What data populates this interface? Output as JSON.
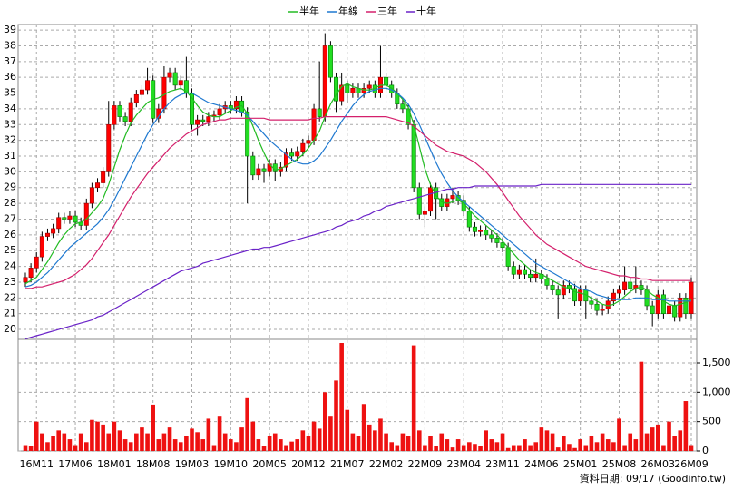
{
  "chart_data": {
    "type": "candlestick",
    "categories": [
      null,
      null,
      "16M11",
      null,
      null,
      null,
      null,
      null,
      null,
      "17M06",
      null,
      null,
      null,
      null,
      null,
      null,
      "18M01",
      null,
      null,
      null,
      null,
      null,
      null,
      "18M08",
      null,
      null,
      null,
      null,
      null,
      null,
      "19M03",
      null,
      null,
      null,
      null,
      null,
      null,
      "19M10",
      null,
      null,
      null,
      null,
      null,
      null,
      "20M05",
      null,
      null,
      null,
      null,
      null,
      null,
      "20M12",
      null,
      null,
      null,
      null,
      null,
      null,
      "21M07",
      null,
      null,
      null,
      null,
      null,
      null,
      "22M02",
      null,
      null,
      null,
      null,
      null,
      null,
      "22M09",
      null,
      null,
      null,
      null,
      null,
      null,
      "23M04",
      null,
      null,
      null,
      null,
      null,
      null,
      "23M11",
      null,
      null,
      null,
      null,
      null,
      null,
      "24M06",
      null,
      null,
      null,
      null,
      null,
      null,
      "25M01",
      null,
      null,
      null,
      null,
      null,
      null,
      "25M08",
      null,
      null,
      null,
      null,
      null,
      null,
      "26M03",
      null,
      null,
      null,
      null,
      null,
      "26M09"
    ],
    "open": [
      23.0,
      23.3,
      23.9,
      24.6,
      25.9,
      26.1,
      26.4,
      27.1,
      27.0,
      27.2,
      26.8,
      26.6,
      28.0,
      29.0,
      29.3,
      30.0,
      33.0,
      34.2,
      33.5,
      33.2,
      34.4,
      34.9,
      35.2,
      35.8,
      33.4,
      34.0,
      36.0,
      36.3,
      35.5,
      35.8,
      35.0,
      33.0,
      33.3,
      33.2,
      33.5,
      33.6,
      34.0,
      34.2,
      34.0,
      34.5,
      33.8,
      31.0,
      29.8,
      30.2,
      30.0,
      30.5,
      30.0,
      30.3,
      31.2,
      31.0,
      31.3,
      31.8,
      32.0,
      34.0,
      33.5,
      38.0,
      36.0,
      34.5,
      35.5,
      35.0,
      35.3,
      35.0,
      35.3,
      35.5,
      35.0,
      36.0,
      35.5,
      35.0,
      34.3,
      34.0,
      33.0,
      29.0,
      27.3,
      27.5,
      29.0,
      28.3,
      27.8,
      28.3,
      28.5,
      28.2,
      27.5,
      26.5,
      26.2,
      26.3,
      26.0,
      25.8,
      25.5,
      25.2,
      24.0,
      23.5,
      23.8,
      23.5,
      23.3,
      23.5,
      23.2,
      22.8,
      22.5,
      22.2,
      22.8,
      22.6,
      21.8,
      22.5,
      21.8,
      21.6,
      21.2,
      21.3,
      21.8,
      22.3,
      22.5,
      23.0,
      22.6,
      22.8,
      22.5,
      21.5,
      21.0,
      22.2,
      21.0,
      21.5,
      20.8,
      22.0,
      21.0
    ],
    "high": [
      23.6,
      24.2,
      24.9,
      26.2,
      26.4,
      26.7,
      27.4,
      27.4,
      27.5,
      27.5,
      27.1,
      28.3,
      29.3,
      29.6,
      30.3,
      34.5,
      34.5,
      34.5,
      33.8,
      34.7,
      35.2,
      35.5,
      36.6,
      36.1,
      34.3,
      36.7,
      36.6,
      36.6,
      36.1,
      37.3,
      35.3,
      33.6,
      33.6,
      33.8,
      33.9,
      34.3,
      34.5,
      34.5,
      34.8,
      34.8,
      34.1,
      31.3,
      30.5,
      30.5,
      30.8,
      30.8,
      30.6,
      31.5,
      31.5,
      31.6,
      32.1,
      32.3,
      34.3,
      37.0,
      38.8,
      38.3,
      36.3,
      36.3,
      35.8,
      35.6,
      35.6,
      35.6,
      35.8,
      35.8,
      38.0,
      36.3,
      35.8,
      35.3,
      34.6,
      34.3,
      33.3,
      29.3,
      27.8,
      29.3,
      29.3,
      28.6,
      28.6,
      29.0,
      28.8,
      28.5,
      27.8,
      26.8,
      26.6,
      26.6,
      26.3,
      26.1,
      25.8,
      25.5,
      24.3,
      24.1,
      24.1,
      23.8,
      24.5,
      23.8,
      23.5,
      23.1,
      22.8,
      23.1,
      23.1,
      22.9,
      22.8,
      22.8,
      22.1,
      21.9,
      21.6,
      22.1,
      22.6,
      22.8,
      24.0,
      23.3,
      24.0,
      23.1,
      22.8,
      21.8,
      22.5,
      22.5,
      21.8,
      21.8,
      22.3,
      22.3,
      23.3
    ],
    "low": [
      22.7,
      23.0,
      23.6,
      24.3,
      25.6,
      25.8,
      26.1,
      26.7,
      26.7,
      26.5,
      26.3,
      26.3,
      27.7,
      28.7,
      29.0,
      29.7,
      32.7,
      33.2,
      32.9,
      32.9,
      34.1,
      34.6,
      34.9,
      33.1,
      33.1,
      33.7,
      35.7,
      35.2,
      35.2,
      34.7,
      32.7,
      32.3,
      32.9,
      32.9,
      33.2,
      33.3,
      33.7,
      33.7,
      33.7,
      33.5,
      28.0,
      29.5,
      29.5,
      29.3,
      29.7,
      29.4,
      29.7,
      30.0,
      30.7,
      30.7,
      31.0,
      31.5,
      31.7,
      33.2,
      33.2,
      35.7,
      33.8,
      34.2,
      34.4,
      34.7,
      34.7,
      34.7,
      35.0,
      34.7,
      34.7,
      35.2,
      34.7,
      34.0,
      33.7,
      32.7,
      28.7,
      27.0,
      26.5,
      27.2,
      27.0,
      27.5,
      27.5,
      28.0,
      27.9,
      27.2,
      26.2,
      25.9,
      25.9,
      25.7,
      25.5,
      25.2,
      24.9,
      23.7,
      23.2,
      23.2,
      23.2,
      23.0,
      23.0,
      22.9,
      22.5,
      22.2,
      20.7,
      21.9,
      22.3,
      21.5,
      21.5,
      20.7,
      21.3,
      20.9,
      20.9,
      21.0,
      21.5,
      22.0,
      22.2,
      22.3,
      22.3,
      22.2,
      21.2,
      20.2,
      20.7,
      20.7,
      20.7,
      20.5,
      20.5,
      20.7,
      20.7
    ],
    "close": [
      23.3,
      23.9,
      24.6,
      25.9,
      26.1,
      26.4,
      27.1,
      27.0,
      27.2,
      26.8,
      26.6,
      28.0,
      29.0,
      29.3,
      30.0,
      33.0,
      34.2,
      33.5,
      33.2,
      34.4,
      34.9,
      35.2,
      35.8,
      33.4,
      34.0,
      36.0,
      36.3,
      35.5,
      35.8,
      35.0,
      33.0,
      33.3,
      33.2,
      33.5,
      33.6,
      34.0,
      34.2,
      34.0,
      34.5,
      33.8,
      31.0,
      29.8,
      30.2,
      30.0,
      30.5,
      30.0,
      30.3,
      31.2,
      31.0,
      31.3,
      31.8,
      32.0,
      34.0,
      33.5,
      38.0,
      36.0,
      34.5,
      35.5,
      35.0,
      35.3,
      35.0,
      35.3,
      35.5,
      35.0,
      36.0,
      35.5,
      35.0,
      34.3,
      34.0,
      33.0,
      29.0,
      27.3,
      27.5,
      29.0,
      28.3,
      27.8,
      28.3,
      28.5,
      28.2,
      27.5,
      26.5,
      26.2,
      26.3,
      26.0,
      25.8,
      25.5,
      25.2,
      24.0,
      23.5,
      23.8,
      23.5,
      23.3,
      23.5,
      23.2,
      22.8,
      22.5,
      22.2,
      22.8,
      22.6,
      21.8,
      22.5,
      21.8,
      21.6,
      21.2,
      21.3,
      21.8,
      22.3,
      22.5,
      23.0,
      22.6,
      22.8,
      22.5,
      21.5,
      21.0,
      22.2,
      21.0,
      21.5,
      20.8,
      22.0,
      21.0,
      23.0
    ],
    "up_color": "#ff0000",
    "down_color": "#22dd22",
    "series": [
      {
        "name": "半年",
        "color": "#22bb22",
        "values": [
          22.9,
          23.1,
          23.3,
          23.8,
          24.3,
          24.9,
          25.5,
          26.0,
          26.4,
          26.7,
          26.8,
          27.0,
          27.4,
          27.8,
          28.3,
          29.2,
          30.3,
          31.4,
          32.3,
          33.1,
          33.6,
          34.0,
          34.4,
          34.6,
          34.7,
          34.9,
          35.1,
          35.2,
          35.3,
          35.1,
          34.7,
          34.2,
          33.8,
          33.6,
          33.5,
          33.5,
          33.7,
          33.9,
          34.1,
          34.2,
          33.7,
          32.9,
          32.0,
          31.2,
          30.5,
          30.1,
          30.2,
          30.4,
          30.6,
          30.8,
          31.1,
          31.5,
          32.0,
          32.6,
          33.5,
          34.3,
          34.9,
          35.4,
          35.6,
          35.4,
          35.3,
          35.2,
          35.2,
          35.3,
          35.5,
          35.5,
          35.3,
          35.0,
          34.6,
          34.1,
          33.0,
          31.6,
          30.2,
          29.2,
          28.5,
          28.1,
          28.0,
          28.1,
          28.2,
          28.0,
          27.6,
          27.2,
          26.9,
          26.6,
          26.3,
          26.0,
          25.6,
          25.2,
          24.8,
          24.4,
          24.1,
          23.8,
          23.6,
          23.5,
          23.3,
          23.1,
          22.9,
          22.7,
          22.6,
          22.4,
          22.3,
          22.2,
          22.0,
          21.8,
          21.6,
          21.5,
          21.6,
          21.8,
          22.1,
          22.4,
          22.6,
          22.7,
          22.5,
          22.2,
          22.0,
          21.8,
          21.6,
          21.5,
          21.6,
          21.7,
          21.9
        ]
      },
      {
        "name": "年線",
        "color": "#1e78d0",
        "values": [
          22.7,
          22.8,
          23.0,
          23.3,
          23.6,
          24.0,
          24.4,
          24.8,
          25.2,
          25.5,
          25.8,
          26.1,
          26.4,
          26.7,
          27.1,
          27.6,
          28.2,
          28.9,
          29.6,
          30.3,
          31.0,
          31.7,
          32.4,
          33.0,
          33.5,
          34.0,
          34.4,
          34.7,
          34.9,
          35.0,
          35.0,
          34.8,
          34.6,
          34.4,
          34.3,
          34.2,
          34.1,
          34.0,
          33.9,
          33.8,
          33.6,
          33.2,
          32.8,
          32.4,
          32.0,
          31.7,
          31.4,
          31.1,
          30.8,
          30.6,
          30.5,
          30.5,
          30.7,
          31.0,
          31.5,
          32.0,
          32.6,
          33.2,
          33.7,
          34.2,
          34.6,
          34.9,
          35.1,
          35.2,
          35.3,
          35.3,
          35.2,
          35.0,
          34.7,
          34.3,
          33.7,
          33.0,
          32.2,
          31.4,
          30.6,
          29.9,
          29.3,
          28.8,
          28.4,
          28.1,
          27.8,
          27.5,
          27.2,
          26.9,
          26.6,
          26.3,
          26.0,
          25.7,
          25.4,
          25.1,
          24.8,
          24.5,
          24.2,
          24.0,
          23.8,
          23.6,
          23.4,
          23.2,
          23.0,
          22.8,
          22.6,
          22.5,
          22.4,
          22.2,
          22.1,
          22.0,
          21.9,
          21.9,
          21.9,
          21.9,
          22.0,
          22.0,
          22.0,
          21.9,
          21.9,
          21.9,
          21.8,
          21.8,
          21.8,
          21.8,
          21.8
        ]
      },
      {
        "name": "三年",
        "color": "#d4206c",
        "values": [
          22.6,
          22.6,
          22.7,
          22.7,
          22.8,
          22.9,
          23.0,
          23.1,
          23.3,
          23.5,
          23.8,
          24.1,
          24.5,
          25.0,
          25.5,
          26.0,
          26.6,
          27.2,
          27.8,
          28.4,
          28.9,
          29.4,
          29.9,
          30.3,
          30.7,
          31.1,
          31.5,
          31.8,
          32.1,
          32.4,
          32.6,
          32.8,
          33.0,
          33.1,
          33.2,
          33.3,
          33.3,
          33.4,
          33.4,
          33.4,
          33.4,
          33.4,
          33.4,
          33.4,
          33.3,
          33.3,
          33.3,
          33.3,
          33.3,
          33.3,
          33.3,
          33.3,
          33.4,
          33.4,
          33.5,
          33.5,
          33.5,
          33.5,
          33.5,
          33.5,
          33.5,
          33.5,
          33.5,
          33.5,
          33.5,
          33.5,
          33.4,
          33.3,
          33.2,
          33.1,
          32.9,
          32.6,
          32.3,
          32.0,
          31.7,
          31.5,
          31.3,
          31.2,
          31.1,
          31.0,
          30.8,
          30.6,
          30.3,
          30.0,
          29.6,
          29.2,
          28.7,
          28.2,
          27.7,
          27.2,
          26.8,
          26.4,
          26.0,
          25.7,
          25.4,
          25.2,
          25.0,
          24.8,
          24.6,
          24.4,
          24.2,
          24.0,
          23.9,
          23.8,
          23.7,
          23.6,
          23.5,
          23.4,
          23.4,
          23.3,
          23.3,
          23.2,
          23.2,
          23.1,
          23.1,
          23.1,
          23.1,
          23.1,
          23.1,
          23.1,
          23.1
        ]
      },
      {
        "name": "十年",
        "color": "#6a22c8",
        "values": [
          19.4,
          19.5,
          19.6,
          19.7,
          19.8,
          19.9,
          20.0,
          20.1,
          20.2,
          20.3,
          20.4,
          20.5,
          20.6,
          20.8,
          20.9,
          21.1,
          21.3,
          21.5,
          21.7,
          21.9,
          22.1,
          22.3,
          22.5,
          22.7,
          22.9,
          23.1,
          23.3,
          23.5,
          23.7,
          23.8,
          23.9,
          24.0,
          24.2,
          24.3,
          24.4,
          24.5,
          24.6,
          24.7,
          24.8,
          24.9,
          25.0,
          25.1,
          25.1,
          25.2,
          25.2,
          25.3,
          25.4,
          25.5,
          25.6,
          25.7,
          25.8,
          25.9,
          26.0,
          26.1,
          26.2,
          26.3,
          26.5,
          26.6,
          26.8,
          26.9,
          27.0,
          27.2,
          27.3,
          27.5,
          27.6,
          27.8,
          27.9,
          28.0,
          28.1,
          28.2,
          28.3,
          28.4,
          28.5,
          28.6,
          28.7,
          28.8,
          28.9,
          28.9,
          29.0,
          29.0,
          29.0,
          29.1,
          29.1,
          29.1,
          29.1,
          29.1,
          29.1,
          29.1,
          29.1,
          29.1,
          29.1,
          29.1,
          29.1,
          29.2,
          29.2,
          29.2,
          29.2,
          29.2,
          29.2,
          29.2,
          29.2,
          29.2,
          29.2,
          29.2,
          29.2,
          29.2,
          29.2,
          29.2,
          29.2,
          29.2,
          29.2,
          29.2,
          29.2,
          29.2,
          29.2,
          29.2,
          29.2,
          29.2,
          29.2,
          29.2,
          29.2
        ]
      }
    ],
    "volume": {
      "color": "#ee1111",
      "values": [
        100,
        80,
        500,
        300,
        150,
        250,
        350,
        300,
        200,
        100,
        300,
        150,
        530,
        500,
        450,
        300,
        500,
        350,
        200,
        150,
        300,
        400,
        300,
        790,
        200,
        300,
        400,
        200,
        150,
        250,
        380,
        320,
        200,
        550,
        100,
        600,
        300,
        200,
        150,
        400,
        900,
        500,
        200,
        80,
        250,
        300,
        200,
        100,
        160,
        200,
        350,
        250,
        500,
        380,
        1000,
        600,
        1200,
        1840,
        700,
        300,
        250,
        800,
        450,
        350,
        550,
        300,
        150,
        100,
        300,
        250,
        1800,
        350,
        100,
        250,
        80,
        300,
        200,
        60,
        200,
        100,
        150,
        120,
        80,
        350,
        200,
        150,
        300,
        50,
        100,
        100,
        200,
        100,
        150,
        400,
        350,
        300,
        60,
        250,
        120,
        50,
        200,
        100,
        250,
        150,
        300,
        200,
        150,
        550,
        100,
        300,
        200,
        1520,
        300,
        400,
        450,
        100,
        500,
        250,
        350,
        850,
        100
      ]
    },
    "ylim": [
      19.6,
      39.35
    ],
    "yticks": [
      20,
      21,
      22,
      23,
      24,
      25,
      26,
      27,
      28,
      29,
      30,
      31,
      32,
      33,
      34,
      35,
      36,
      37,
      38,
      39
    ],
    "y2lim": [
      0,
      1840
    ],
    "y2ticks": [
      0,
      500,
      {
        "value": 1000,
        "label": "1,000"
      },
      {
        "value": 1500,
        "label": "1,500"
      }
    ],
    "grid": true,
    "note": "資料日期: 09/17  (Goodinfo.tw)"
  }
}
